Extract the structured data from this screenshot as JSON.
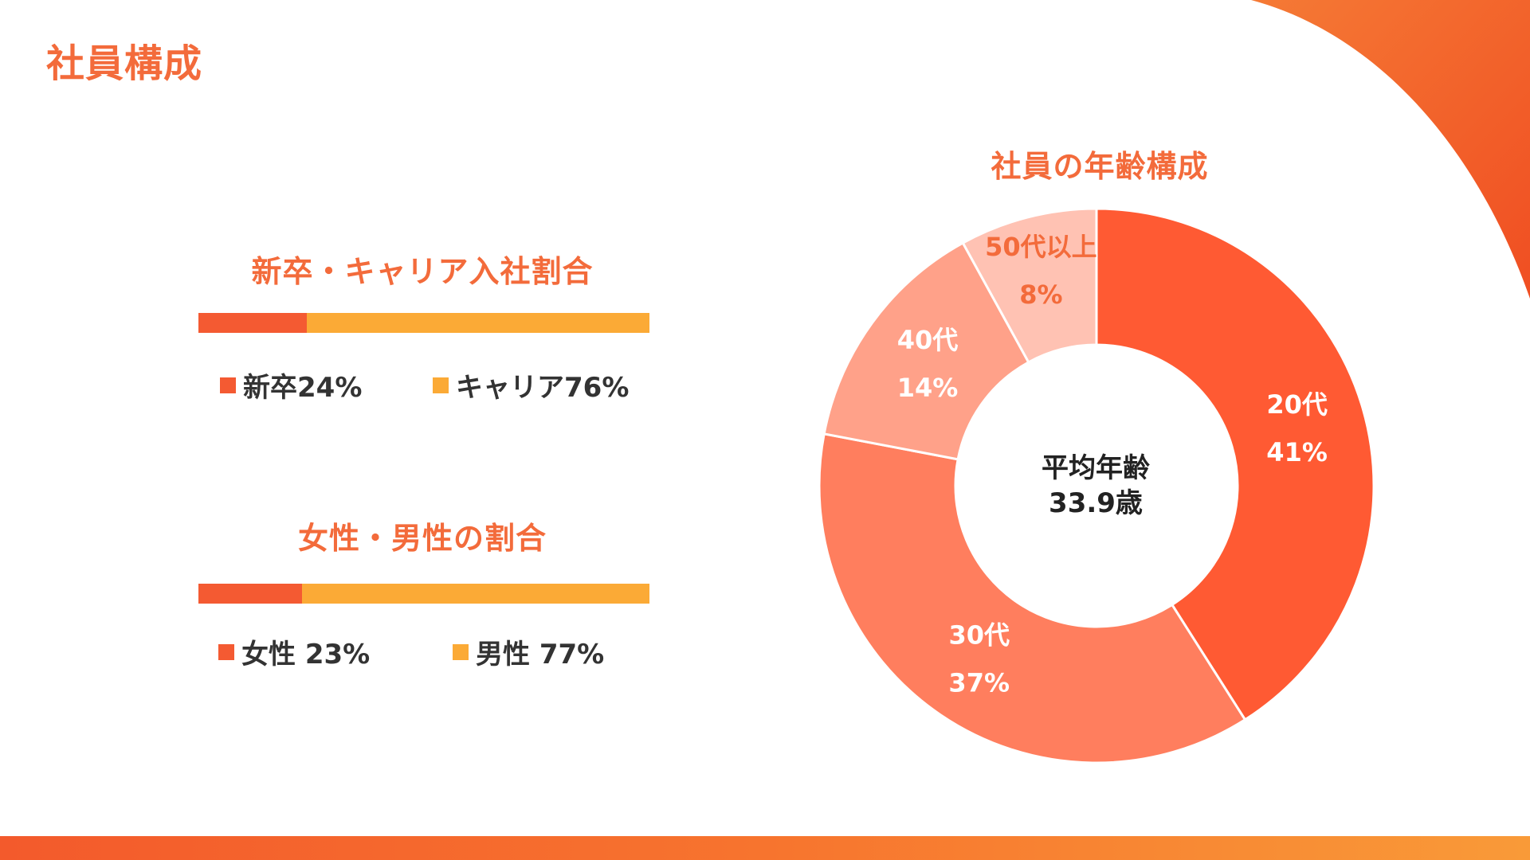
{
  "page": {
    "title": "社員構成"
  },
  "hiring_ratio": {
    "title": "新卒・キャリア入社割合",
    "legend_new": "新卒24%",
    "legend_career": "キャリア76%"
  },
  "gender_ratio": {
    "title": "女性・男性の割合",
    "legend_female": "女性 23%",
    "legend_male": "男性 77%"
  },
  "colors": {
    "accent": "#F36B3B",
    "bar_primary": "#F45A32",
    "bar_secondary": "#FBAA36",
    "slice_20s": "#FF5A33",
    "slice_30s": "#FF7E5E",
    "slice_40s": "#FFA189",
    "slice_50s": "#FFC2B3",
    "slice_label_light": "#FFFFFF",
    "slice_label_dark": "#F36B3B"
  },
  "donut_center": {
    "line1": "平均年齢",
    "line2": "33.9歳"
  },
  "chart_data": [
    {
      "type": "bar",
      "orientation": "horizontal-stacked",
      "title": "新卒・キャリア入社割合",
      "categories": [
        "新卒",
        "キャリア"
      ],
      "values": [
        24,
        76
      ],
      "unit": "%",
      "legend_position": "bottom"
    },
    {
      "type": "bar",
      "orientation": "horizontal-stacked",
      "title": "女性・男性の割合",
      "categories": [
        "女性",
        "男性"
      ],
      "values": [
        23,
        77
      ],
      "unit": "%",
      "legend_position": "bottom"
    },
    {
      "type": "pie",
      "style": "donut",
      "title": "社員の年齢構成",
      "categories": [
        "20代",
        "30代",
        "40代",
        "50代以上"
      ],
      "values": [
        41,
        37,
        14,
        8
      ],
      "labels": [
        "41%",
        "37%",
        "14%",
        "8%"
      ],
      "start_angle_deg": 0,
      "direction": "clockwise"
    }
  ]
}
